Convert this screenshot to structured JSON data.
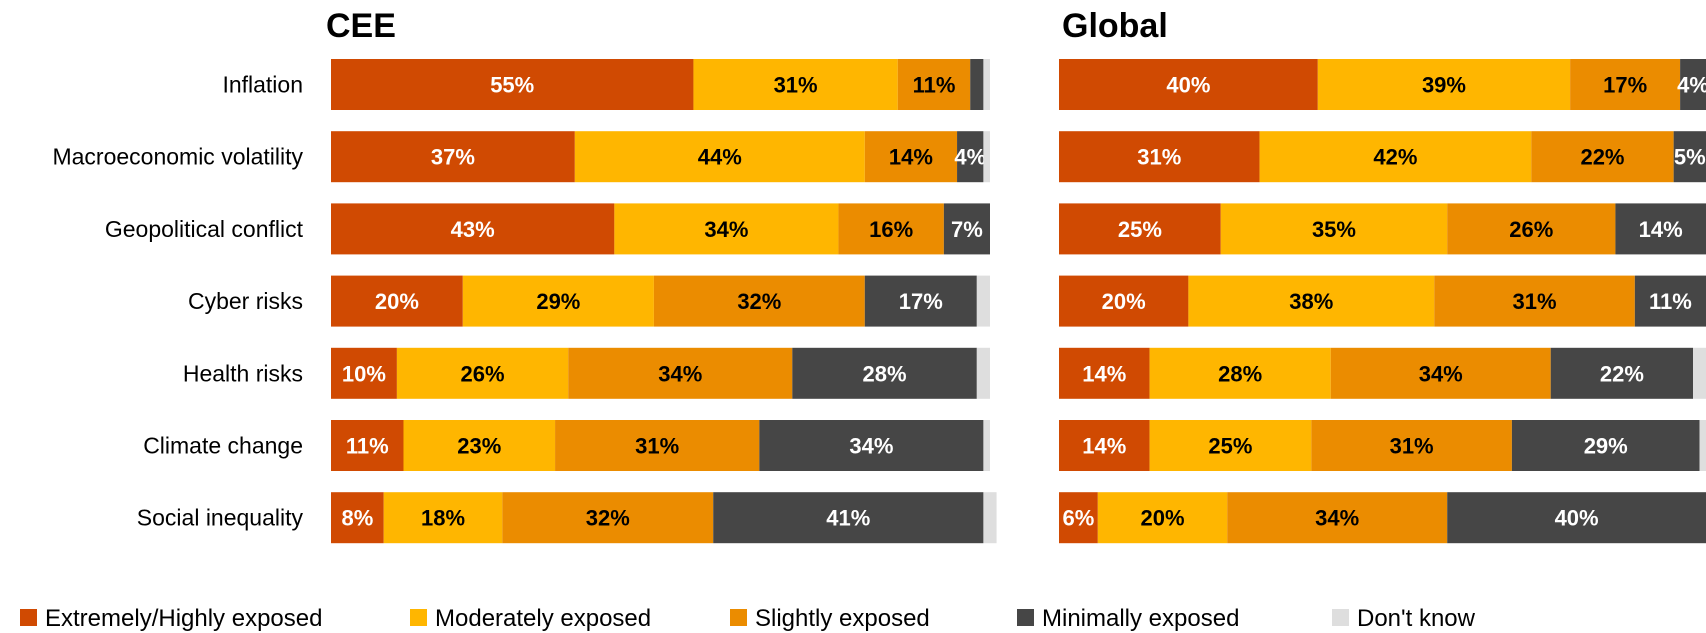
{
  "chart_data": [
    {
      "type": "bar",
      "orientation": "horizontal",
      "stacked": true,
      "title": "CEE",
      "categories": [
        "Inflation",
        "Macroeconomic volatility",
        "Geopolitical conflict",
        "Cyber risks",
        "Health risks",
        "Climate change",
        "Social inequality"
      ],
      "series": [
        {
          "name": "Extremely/Highly exposed",
          "values": [
            55,
            37,
            43,
            20,
            10,
            11,
            8
          ]
        },
        {
          "name": "Moderately exposed",
          "values": [
            31,
            44,
            34,
            29,
            26,
            23,
            18
          ]
        },
        {
          "name": "Slightly exposed",
          "values": [
            11,
            14,
            16,
            32,
            34,
            31,
            32
          ]
        },
        {
          "name": "Minimally exposed",
          "values": [
            2,
            4,
            7,
            17,
            28,
            34,
            41
          ]
        },
        {
          "name": "Don't know",
          "values": [
            1,
            1,
            0,
            2,
            2,
            1,
            2
          ]
        }
      ],
      "value_labels": [
        [
          "55%",
          "31%",
          "11%",
          "",
          ""
        ],
        [
          "37%",
          "44%",
          "14%",
          "4%",
          ""
        ],
        [
          "43%",
          "34%",
          "16%",
          "7%",
          ""
        ],
        [
          "20%",
          "29%",
          "32%",
          "17%",
          ""
        ],
        [
          "10%",
          "26%",
          "34%",
          "28%",
          ""
        ],
        [
          "11%",
          "23%",
          "31%",
          "34%",
          ""
        ],
        [
          "8%",
          "18%",
          "32%",
          "41%",
          ""
        ]
      ],
      "xlim": [
        0,
        100
      ],
      "legend": "bottom"
    },
    {
      "type": "bar",
      "orientation": "horizontal",
      "stacked": true,
      "title": "Global",
      "categories": [
        "Inflation",
        "Macroeconomic volatility",
        "Geopolitical conflict",
        "Cyber risks",
        "Health risks",
        "Climate change",
        "Social inequality"
      ],
      "series": [
        {
          "name": "Extremely/Highly exposed",
          "values": [
            40,
            31,
            25,
            20,
            14,
            14,
            6
          ]
        },
        {
          "name": "Moderately exposed",
          "values": [
            39,
            42,
            35,
            38,
            28,
            25,
            20
          ]
        },
        {
          "name": "Slightly exposed",
          "values": [
            17,
            22,
            26,
            31,
            34,
            31,
            34
          ]
        },
        {
          "name": "Minimally exposed",
          "values": [
            4,
            5,
            14,
            11,
            22,
            29,
            40
          ]
        },
        {
          "name": "Don't know",
          "values": [
            0,
            0,
            0,
            0,
            2,
            1,
            0
          ]
        }
      ],
      "value_labels": [
        [
          "40%",
          "39%",
          "17%",
          "4%",
          ""
        ],
        [
          "31%",
          "42%",
          "22%",
          "5%",
          ""
        ],
        [
          "25%",
          "35%",
          "26%",
          "14%",
          ""
        ],
        [
          "20%",
          "38%",
          "31%",
          "11%",
          ""
        ],
        [
          "14%",
          "28%",
          "34%",
          "22%",
          ""
        ],
        [
          "14%",
          "25%",
          "31%",
          "29%",
          ""
        ],
        [
          "6%",
          "20%",
          "34%",
          "40%",
          ""
        ]
      ],
      "xlim": [
        0,
        100
      ],
      "legend": "bottom"
    }
  ],
  "legend": [
    {
      "label": "Extremely/Highly exposed",
      "color": "#D04A02"
    },
    {
      "label": "Moderately exposed",
      "color": "#FFB600"
    },
    {
      "label": "Slightly exposed",
      "color": "#EB8C00"
    },
    {
      "label": "Minimally exposed",
      "color": "#464646"
    },
    {
      "label": "Don't know",
      "color": "#DEDEDE"
    }
  ],
  "label_colors": [
    "#FFFFFF",
    "#000000",
    "#000000",
    "#FFFFFF",
    "#000000"
  ]
}
